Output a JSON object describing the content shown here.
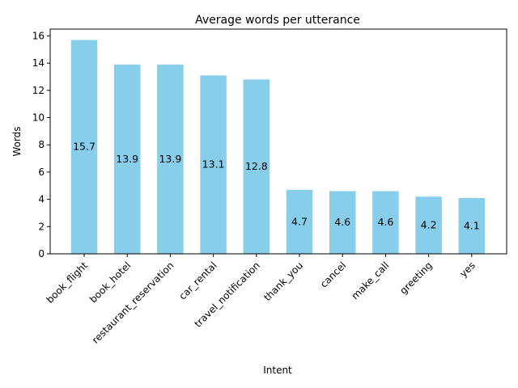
{
  "chart_data": {
    "type": "bar",
    "title": "Average words per utterance",
    "xlabel": "Intent",
    "ylabel": "Words",
    "categories": [
      "book_flight",
      "book_hotel",
      "restaurant_reservation",
      "car_rental",
      "travel_notification",
      "thank_you",
      "cancel",
      "make_call",
      "greeting",
      "yes"
    ],
    "values": [
      15.7,
      13.9,
      13.9,
      13.1,
      12.8,
      4.7,
      4.6,
      4.6,
      4.2,
      4.1
    ],
    "value_labels": [
      "15.7",
      "13.9",
      "13.9",
      "13.1",
      "12.8",
      "4.7",
      "4.6",
      "4.6",
      "4.2",
      "4.1"
    ],
    "ylim": [
      0,
      16.5
    ],
    "yticks": [
      0,
      2,
      4,
      6,
      8,
      10,
      12,
      14,
      16
    ],
    "bar_color": "#87ceeb",
    "grid": false,
    "legend": "none"
  }
}
